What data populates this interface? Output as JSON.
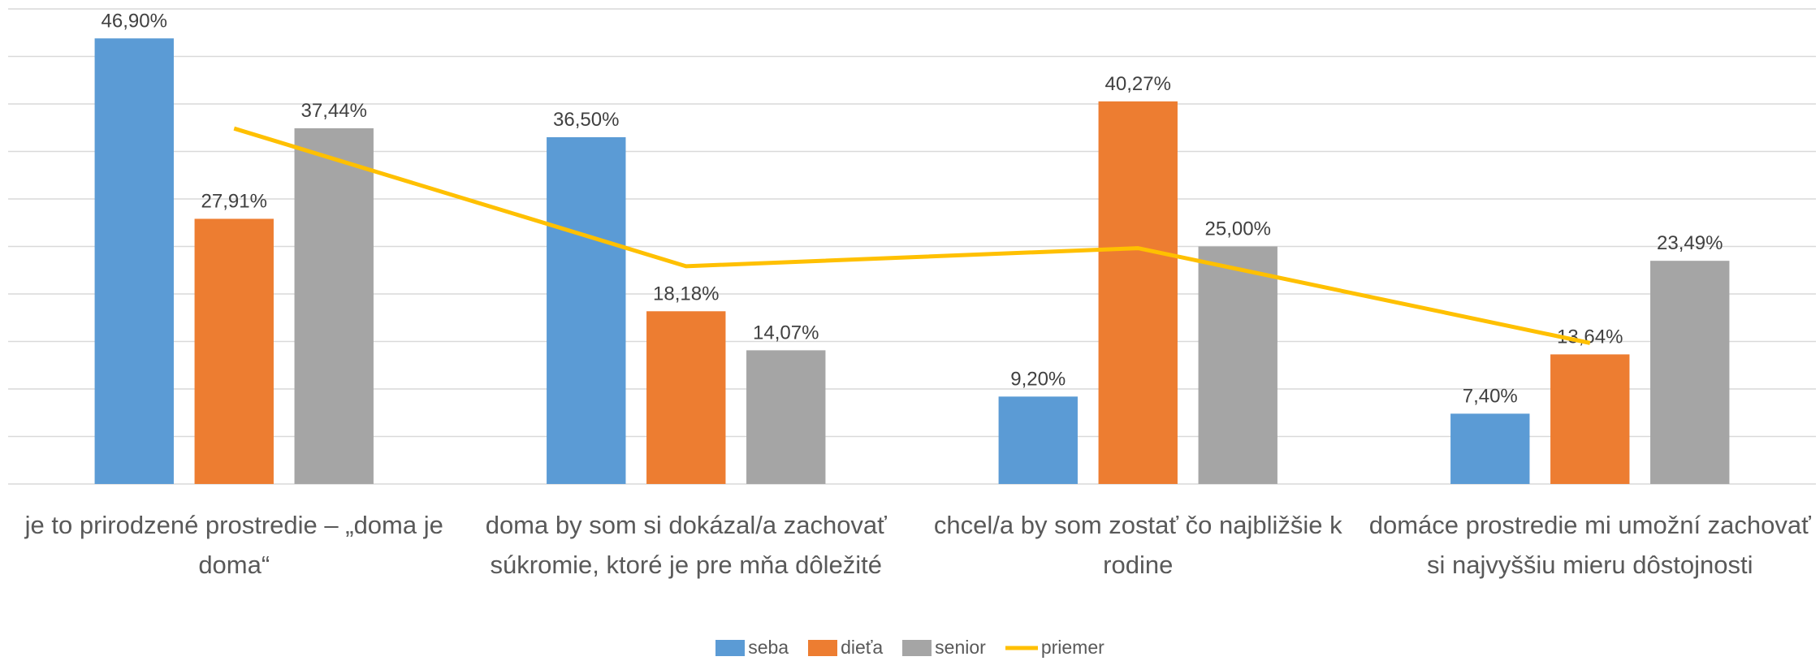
{
  "chart_data": {
    "type": "bar",
    "categories": [
      "je to prirodzené prostredie – „doma je doma“",
      "doma by som si dokázal/a zachovať súkromie, ktoré je pre mňa dôležité",
      "chcel/a by som zostať čo najbližšie k rodine",
      "domáce prostredie mi umožní zachovať si najvyššiu mieru dôstojnosti"
    ],
    "series": [
      {
        "name": "seba",
        "color": "#5b9bd5",
        "values": [
          46.9,
          36.5,
          9.2,
          7.4
        ],
        "value_labels": [
          "46,90%",
          "36,50%",
          "9,20%",
          "7,40%"
        ]
      },
      {
        "name": "dieťa",
        "color": "#ed7d31",
        "values": [
          27.91,
          18.18,
          40.27,
          13.64
        ],
        "value_labels": [
          "27,91%",
          "18,18%",
          "40,27%",
          "13,64%"
        ]
      },
      {
        "name": "senior",
        "color": "#a5a5a5",
        "values": [
          37.44,
          14.07,
          25.0,
          23.49
        ],
        "value_labels": [
          "37,44%",
          "14,07%",
          "25,00%",
          "23,49%"
        ]
      },
      {
        "name": "priemer",
        "color": "#ffc000",
        "type": "line",
        "values": [
          37.42,
          22.92,
          24.82,
          14.84
        ]
      }
    ],
    "ylim": [
      0,
      50
    ],
    "yticks": [
      0,
      5,
      10,
      15,
      20,
      25,
      30,
      35,
      40,
      45,
      50
    ],
    "grid": true,
    "legend": "bottom"
  }
}
